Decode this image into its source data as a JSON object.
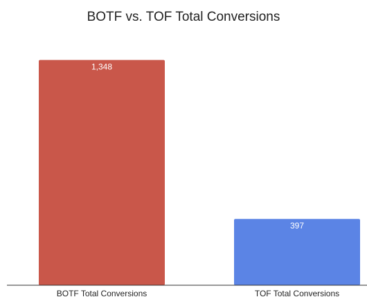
{
  "chart_data": {
    "type": "bar",
    "title": "BOTF vs. TOF Total Conversions",
    "categories": [
      "BOTF Total Conversions",
      "TOF Total Conversions"
    ],
    "values": [
      1348,
      397
    ],
    "data_labels": [
      "1,348",
      "397"
    ],
    "colors": [
      "#c9574a",
      "#5b84e5"
    ],
    "ylim": [
      0,
      1500
    ],
    "xlabel": "",
    "ylabel": "",
    "grid": false,
    "legend": "none"
  }
}
